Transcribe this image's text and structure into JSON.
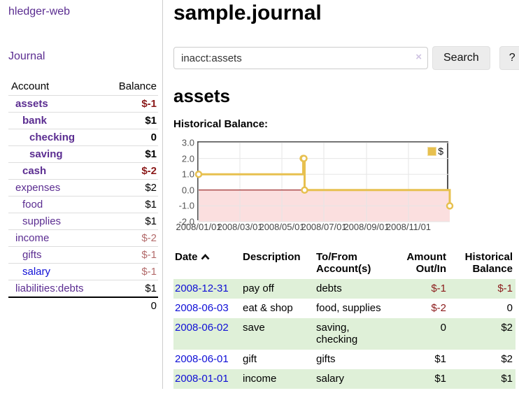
{
  "sidebar": {
    "title": "hledger-web",
    "journal_link": "Journal",
    "table": {
      "account_header": "Account",
      "balance_header": "Balance"
    },
    "accounts": [
      {
        "name": "assets",
        "depth": 1,
        "bold": true,
        "name_color": "purple",
        "balance": "$-1",
        "balance_class": "neg-strong"
      },
      {
        "name": "bank",
        "depth": 2,
        "bold": true,
        "name_color": "purple",
        "balance": "$1",
        "balance_class": "pos"
      },
      {
        "name": "checking",
        "depth": 3,
        "bold": true,
        "name_color": "purple",
        "balance": "0",
        "balance_class": "pos"
      },
      {
        "name": "saving",
        "depth": 3,
        "bold": true,
        "name_color": "purple",
        "balance": "$1",
        "balance_class": "pos"
      },
      {
        "name": "cash",
        "depth": 2,
        "bold": true,
        "name_color": "purple",
        "balance": "$-2",
        "balance_class": "neg-strong"
      },
      {
        "name": "expenses",
        "depth": 1,
        "bold": false,
        "name_color": "purple",
        "balance": "$2",
        "balance_class": "pos"
      },
      {
        "name": "food",
        "depth": 2,
        "bold": false,
        "name_color": "purple",
        "balance": "$1",
        "balance_class": "pos"
      },
      {
        "name": "supplies",
        "depth": 2,
        "bold": false,
        "name_color": "purple",
        "balance": "$1",
        "balance_class": "pos"
      },
      {
        "name": "income",
        "depth": 1,
        "bold": false,
        "name_color": "purple",
        "balance": "$-2",
        "balance_class": "neg-soft"
      },
      {
        "name": "gifts",
        "depth": 2,
        "bold": false,
        "name_color": "purple",
        "balance": "$-1",
        "balance_class": "neg-soft"
      },
      {
        "name": "salary",
        "depth": 2,
        "bold": false,
        "name_color": "blue",
        "balance": "$-1",
        "balance_class": "neg-soft"
      },
      {
        "name": "liabilities:debts",
        "depth": 1,
        "bold": false,
        "name_color": "purple",
        "balance": "$1",
        "balance_class": "pos"
      }
    ],
    "total": "0"
  },
  "header": {
    "title": "sample.journal"
  },
  "search": {
    "value": "inacct:assets",
    "clear_icon": "×",
    "button_label": "Search",
    "help_label": "?"
  },
  "account_page": {
    "heading": "assets",
    "chart_title": "Historical Balance:"
  },
  "chart_data": {
    "type": "line",
    "step": true,
    "title": "Historical Balance:",
    "legend": "$",
    "legend_position": "top-right",
    "series": [
      {
        "name": "$",
        "color": "#e7c04f",
        "points": [
          [
            "2008-01-01",
            1
          ],
          [
            "2008-06-01",
            2
          ],
          [
            "2008-06-02",
            2
          ],
          [
            "2008-06-03",
            0
          ],
          [
            "2008-12-31",
            -1
          ]
        ]
      }
    ],
    "x_range": [
      "2008-01-01",
      "2008-12-31"
    ],
    "ylim": [
      -2,
      3
    ],
    "yticks": [
      3.0,
      2.0,
      1.0,
      0.0,
      -1.0,
      -2.0
    ],
    "ytick_labels": [
      "3.0",
      "2.0",
      "1.0",
      "0.0",
      "-1.0",
      "-2.0"
    ],
    "xtick_labels": [
      "2008/01/01",
      "2008/03/01",
      "2008/05/01",
      "2008/07/01",
      "2008/09/01",
      "2008/11/01"
    ],
    "grid": true,
    "colors": {
      "marker_fill": "#ffffff",
      "negative_region": "#fbdfdf",
      "zero_line": "#8b0000",
      "grid": "#e6e6e6",
      "border": "#545454"
    }
  },
  "register": {
    "headers": {
      "date": "Date",
      "description": "Description",
      "accounts": "To/From Account(s)",
      "amount": "Amount Out/In",
      "balance": "Historical Balance"
    },
    "sort_icon": "chevron-up",
    "rows": [
      {
        "date": "2008-12-31",
        "description": "pay off",
        "accounts": "debts",
        "amount": "$-1",
        "amount_negative": true,
        "balance": "$-1",
        "balance_negative": true,
        "shaded": true
      },
      {
        "date": "2008-06-03",
        "description": "eat & shop",
        "accounts": "food, supplies",
        "amount": "$-2",
        "amount_negative": true,
        "balance": "0",
        "balance_negative": false,
        "shaded": false
      },
      {
        "date": "2008-06-02",
        "description": "save",
        "accounts": "saving, checking",
        "amount": "0",
        "amount_negative": false,
        "balance": "$2",
        "balance_negative": false,
        "shaded": true
      },
      {
        "date": "2008-06-01",
        "description": "gift",
        "accounts": "gifts",
        "amount": "$1",
        "amount_negative": false,
        "balance": "$2",
        "balance_negative": false,
        "shaded": false
      },
      {
        "date": "2008-01-01",
        "description": "income",
        "accounts": "salary",
        "amount": "$1",
        "amount_negative": false,
        "balance": "$1",
        "balance_negative": false,
        "shaded": true
      }
    ]
  },
  "ui_colors": {
    "link_purple": "#5b2d91",
    "link_blue": "#0f0fd6",
    "negative_strong": "#8b1a1a",
    "negative_soft": "#b36b6b",
    "row_stripe": "#dff0d8"
  }
}
